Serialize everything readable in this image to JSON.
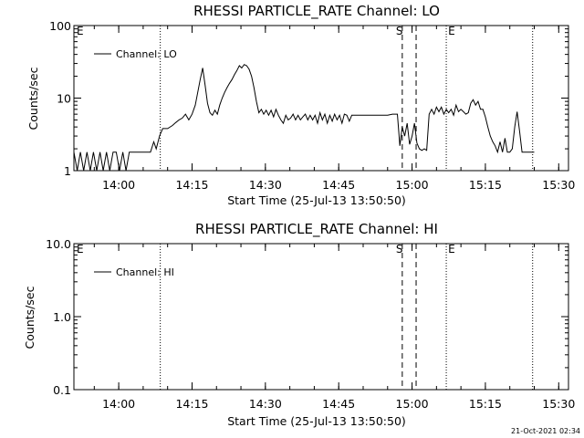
{
  "footer": {
    "timestamp": "21-Oct-2021 02:34"
  },
  "chart_data": [
    {
      "type": "line",
      "title": "RHESSI PARTICLE_RATE Channel: LO",
      "xlabel": "Start Time (25-Jul-13 13:50:50)",
      "ylabel": "Counts/sec",
      "yscale": "log",
      "xlim": [
        "13:50:50",
        "15:32:00"
      ],
      "ylim": [
        1,
        100
      ],
      "x_ticks": [
        "14:00",
        "14:15",
        "14:30",
        "14:45",
        "15:00",
        "15:15",
        "15:30"
      ],
      "y_ticks": [
        "1",
        "10",
        "100"
      ],
      "legend": {
        "position": "top-left",
        "entries": [
          "Channel: LO"
        ]
      },
      "series": [
        {
          "name": "Channel: LO",
          "color": "#000000",
          "points": [
            [
              "13:50:50",
              1.8
            ],
            [
              "13:51:30",
              1
            ],
            [
              "13:52:10",
              1.8
            ],
            [
              "13:52:50",
              1
            ],
            [
              "13:53:30",
              1.8
            ],
            [
              "13:54:10",
              1
            ],
            [
              "13:54:50",
              1.8
            ],
            [
              "13:55:30",
              1
            ],
            [
              "13:56:10",
              1.8
            ],
            [
              "13:56:50",
              1
            ],
            [
              "13:57:30",
              1.8
            ],
            [
              "13:58:10",
              1
            ],
            [
              "13:58:50",
              1.8
            ],
            [
              "13:59:30",
              1.8
            ],
            [
              "14:00:10",
              1
            ],
            [
              "14:00:50",
              1.8
            ],
            [
              "14:01:30",
              1
            ],
            [
              "14:02:10",
              1.8
            ],
            [
              "14:03:00",
              1.8
            ],
            [
              "14:05:00",
              1.8
            ],
            [
              "14:06:30",
              1.8
            ],
            [
              "14:07:10",
              2.5
            ],
            [
              "14:07:40",
              2
            ],
            [
              "14:08:20",
              3
            ],
            [
              "14:09:00",
              3.8
            ],
            [
              "14:10:00",
              3.8
            ],
            [
              "14:11:00",
              4.2
            ],
            [
              "14:11:40",
              4.6
            ],
            [
              "14:12:20",
              5
            ],
            [
              "14:13:00",
              5.3
            ],
            [
              "14:13:40",
              6
            ],
            [
              "14:14:20",
              5
            ],
            [
              "14:15:00",
              6
            ],
            [
              "14:15:40",
              8
            ],
            [
              "14:16:10",
              12
            ],
            [
              "14:16:40",
              18
            ],
            [
              "14:17:10",
              26
            ],
            [
              "14:17:40",
              15
            ],
            [
              "14:18:10",
              8.5
            ],
            [
              "14:18:40",
              6.3
            ],
            [
              "14:19:10",
              5.8
            ],
            [
              "14:19:40",
              6.8
            ],
            [
              "14:20:10",
              6
            ],
            [
              "14:20:40",
              8
            ],
            [
              "14:21:10",
              10
            ],
            [
              "14:21:40",
              12
            ],
            [
              "14:22:10",
              14
            ],
            [
              "14:22:40",
              16
            ],
            [
              "14:23:10",
              18
            ],
            [
              "14:23:40",
              21
            ],
            [
              "14:24:10",
              24
            ],
            [
              "14:24:40",
              28
            ],
            [
              "14:25:10",
              26
            ],
            [
              "14:25:40",
              29
            ],
            [
              "14:26:10",
              28
            ],
            [
              "14:26:40",
              25
            ],
            [
              "14:27:10",
              20
            ],
            [
              "14:27:40",
              14
            ],
            [
              "14:28:10",
              9
            ],
            [
              "14:28:40",
              6.3
            ],
            [
              "14:29:10",
              7
            ],
            [
              "14:29:40",
              6
            ],
            [
              "14:30:10",
              6.8
            ],
            [
              "14:30:40",
              5.8
            ],
            [
              "14:31:10",
              6.8
            ],
            [
              "14:31:40",
              5.5
            ],
            [
              "14:32:10",
              7
            ],
            [
              "14:32:40",
              5.8
            ],
            [
              "14:33:10",
              5
            ],
            [
              "14:33:40",
              4.5
            ],
            [
              "14:34:10",
              5.8
            ],
            [
              "14:34:40",
              5
            ],
            [
              "14:35:10",
              5.3
            ],
            [
              "14:35:40",
              6
            ],
            [
              "14:36:10",
              5
            ],
            [
              "14:36:40",
              5.8
            ],
            [
              "14:37:10",
              5
            ],
            [
              "14:37:40",
              5.5
            ],
            [
              "14:38:10",
              6
            ],
            [
              "14:38:40",
              5
            ],
            [
              "14:39:10",
              5.8
            ],
            [
              "14:39:40",
              5
            ],
            [
              "14:40:10",
              5.8
            ],
            [
              "14:40:40",
              4.5
            ],
            [
              "14:41:10",
              6.3
            ],
            [
              "14:41:40",
              5
            ],
            [
              "14:42:10",
              6
            ],
            [
              "14:42:40",
              4.5
            ],
            [
              "14:43:10",
              5.8
            ],
            [
              "14:43:40",
              4.8
            ],
            [
              "14:44:10",
              6
            ],
            [
              "14:44:40",
              5
            ],
            [
              "14:45:10",
              5.8
            ],
            [
              "14:45:40",
              4.5
            ],
            [
              "14:46:10",
              6
            ],
            [
              "14:46:40",
              5.8
            ],
            [
              "14:47:10",
              4.8
            ],
            [
              "14:47:40",
              5.8
            ],
            [
              "14:48:10",
              5.8
            ],
            [
              "14:49:00",
              5.8
            ],
            [
              "14:50:00",
              5.8
            ],
            [
              "14:51:00",
              5.8
            ],
            [
              "14:52:00",
              5.8
            ],
            [
              "14:53:00",
              5.8
            ],
            [
              "14:54:00",
              5.8
            ],
            [
              "14:55:00",
              5.8
            ],
            [
              "14:56:00",
              6
            ],
            [
              "14:57:00",
              6
            ],
            [
              "14:57:30",
              2.2
            ],
            [
              "14:58:00",
              4
            ],
            [
              "14:58:30",
              3
            ],
            [
              "14:59:00",
              4.5
            ],
            [
              "14:59:30",
              2.3
            ],
            [
              "15:00:00",
              3
            ],
            [
              "15:00:30",
              4.5
            ],
            [
              "15:01:00",
              2.4
            ],
            [
              "15:01:30",
              2
            ],
            [
              "15:02:00",
              1.9
            ],
            [
              "15:02:30",
              2
            ],
            [
              "15:03:00",
              1.9
            ],
            [
              "15:03:30",
              6
            ],
            [
              "15:04:00",
              7
            ],
            [
              "15:04:30",
              6
            ],
            [
              "15:05:00",
              7.5
            ],
            [
              "15:05:30",
              6.5
            ],
            [
              "15:06:00",
              7.5
            ],
            [
              "15:06:30",
              6
            ],
            [
              "15:07:00",
              7
            ],
            [
              "15:07:30",
              6.3
            ],
            [
              "15:08:00",
              7
            ],
            [
              "15:08:30",
              5.8
            ],
            [
              "15:09:00",
              8
            ],
            [
              "15:09:30",
              6.5
            ],
            [
              "15:10:00",
              7
            ],
            [
              "15:10:30",
              6.5
            ],
            [
              "15:11:00",
              6
            ],
            [
              "15:11:30",
              6.3
            ],
            [
              "15:12:00",
              8.5
            ],
            [
              "15:12:30",
              9.5
            ],
            [
              "15:13:00",
              8
            ],
            [
              "15:13:30",
              9
            ],
            [
              "15:14:00",
              7
            ],
            [
              "15:14:30",
              7
            ],
            [
              "15:15:00",
              5.5
            ],
            [
              "15:15:30",
              4
            ],
            [
              "15:16:00",
              3
            ],
            [
              "15:16:30",
              2.5
            ],
            [
              "15:17:00",
              2.2
            ],
            [
              "15:17:30",
              1.8
            ],
            [
              "15:18:00",
              2.5
            ],
            [
              "15:18:30",
              1.8
            ],
            [
              "15:19:00",
              2.8
            ],
            [
              "15:19:30",
              1.8
            ],
            [
              "15:20:00",
              1.8
            ],
            [
              "15:20:30",
              2
            ],
            [
              "15:21:00",
              4
            ],
            [
              "15:21:30",
              6.5
            ],
            [
              "15:22:00",
              3.5
            ],
            [
              "15:22:30",
              1.8
            ],
            [
              "15:23:00",
              1.8
            ],
            [
              "15:24:00",
              1.8
            ],
            [
              "15:25:00",
              1.8
            ]
          ]
        }
      ],
      "annotations": [
        {
          "label": "E",
          "x": "13:50:50",
          "style": "none"
        },
        {
          "label": "S",
          "x": "14:58:00",
          "style": "dashed"
        },
        {
          "label": "",
          "x": "15:00:50",
          "style": "dashed"
        },
        {
          "label": "E",
          "x": "15:07:00",
          "style": "dotted"
        },
        {
          "label": "",
          "x": "14:08:30",
          "style": "dotted"
        },
        {
          "label": "",
          "x": "15:24:40",
          "style": "dotted"
        }
      ]
    },
    {
      "type": "line",
      "title": "RHESSI PARTICLE_RATE Channel: HI",
      "xlabel": "Start Time (25-Jul-13 13:50:50)",
      "ylabel": "Counts/sec",
      "yscale": "log",
      "xlim": [
        "13:50:50",
        "15:32:00"
      ],
      "ylim": [
        0.1,
        10
      ],
      "x_ticks": [
        "14:00",
        "14:15",
        "14:30",
        "14:45",
        "15:00",
        "15:15",
        "15:30"
      ],
      "y_ticks": [
        "0.1",
        "1.0",
        "10.0"
      ],
      "legend": {
        "position": "top-left",
        "entries": [
          "Channel: HI"
        ]
      },
      "series": [
        {
          "name": "Channel: HI",
          "color": "#000000",
          "points": []
        }
      ],
      "annotations": [
        {
          "label": "E",
          "x": "13:50:50",
          "style": "none"
        },
        {
          "label": "S",
          "x": "14:58:00",
          "style": "dashed"
        },
        {
          "label": "",
          "x": "15:00:50",
          "style": "dashed"
        },
        {
          "label": "E",
          "x": "15:07:00",
          "style": "dotted"
        },
        {
          "label": "",
          "x": "14:08:30",
          "style": "dotted"
        },
        {
          "label": "",
          "x": "15:24:40",
          "style": "dotted"
        }
      ]
    }
  ]
}
